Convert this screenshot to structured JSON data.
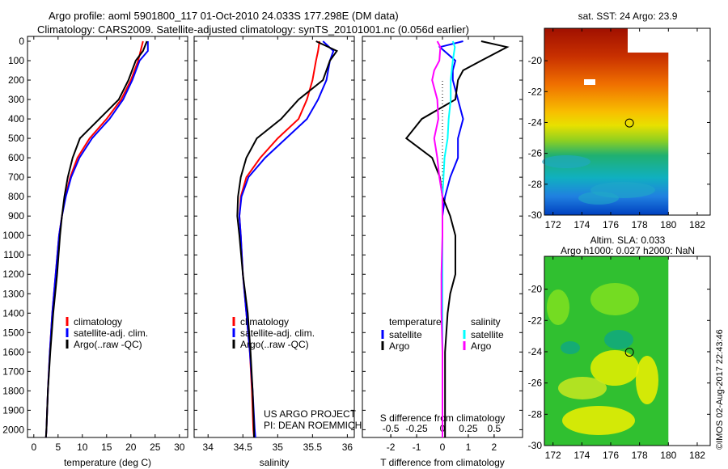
{
  "title": {
    "line1": "Argo profile: aoml 5901800_117 01-Oct-2010 24.033S 177.298E (DM data)",
    "line2": "Climatology: CARS2009. Satellite-adjusted climatology: synTS_20101001.nc (0.056d earlier)"
  },
  "copyright": "©IMOS 02-Aug-2017 22:43:46",
  "colors": {
    "clim": "#ff0000",
    "sat": "#0000ff",
    "argo": "#000000",
    "sal_sat": "#00ffff",
    "sal_argo": "#ff00ff"
  },
  "chart_data": [
    {
      "type": "line",
      "id": "temp",
      "xlabel": "temperature (deg C)",
      "ylabel": "",
      "xlim": [
        -1.3,
        31.7
      ],
      "ylim": [
        2040,
        -25
      ],
      "xticks": [
        "0",
        "5",
        "10",
        "15",
        "20",
        "25",
        "30"
      ],
      "xtickvals": [
        0,
        5,
        10,
        15,
        20,
        25,
        30
      ],
      "depths": [
        0,
        50,
        100,
        200,
        300,
        400,
        500,
        600,
        700,
        800,
        900,
        1000,
        1200,
        1400,
        1600,
        1800,
        2000,
        2040
      ],
      "legend": [
        "climatology",
        "satellite-adj. clim.",
        "Argo(..raw -QC)"
      ],
      "series": [
        {
          "name": "climatology",
          "color": "#ff0000",
          "values": [
            22.5,
            22,
            21.5,
            20,
            18,
            15,
            11.5,
            9,
            7.5,
            6.5,
            5.8,
            5.2,
            4.5,
            3.8,
            3.3,
            2.9,
            2.6,
            2.5
          ]
        },
        {
          "name": "satellite-adj. clim.",
          "color": "#0000ff",
          "values": [
            23.5,
            23.5,
            21.8,
            20.3,
            18.4,
            15.6,
            12,
            9.4,
            7.7,
            6.6,
            5.8,
            5.2,
            4.5,
            3.8,
            3.3,
            2.9,
            2.6,
            2.5
          ]
        },
        {
          "name": "Argo(..raw -QC)",
          "color": "#000000",
          "values": [
            23.3,
            22.5,
            21,
            19.5,
            17.5,
            13.5,
            9.5,
            8,
            7,
            6.3,
            5.8,
            5.4,
            4.8,
            4,
            3.4,
            2.9,
            2.6,
            2.5
          ]
        }
      ]
    },
    {
      "type": "line",
      "id": "sal",
      "xlabel": "salinity",
      "xlim": [
        33.8,
        36.1
      ],
      "ylim": [
        2040,
        -25
      ],
      "xticks": [
        "34",
        "34.5",
        "35",
        "35.5",
        "36"
      ],
      "xtickvals": [
        34,
        34.5,
        35,
        35.5,
        36
      ],
      "depths": [
        0,
        50,
        100,
        200,
        300,
        400,
        500,
        600,
        700,
        800,
        900,
        1000,
        1200,
        1400,
        1600,
        1800,
        2000,
        2040
      ],
      "legend": [
        "climatology",
        "satellite-adj. clim.",
        "Argo(..raw -QC)"
      ],
      "annotation": [
        "US ARGO PROJECT",
        "PI: DEAN ROEMMICH"
      ],
      "series": [
        {
          "name": "climatology",
          "color": "#ff0000",
          "values": [
            35.6,
            35.58,
            35.55,
            35.5,
            35.42,
            35.3,
            35.0,
            34.75,
            34.55,
            34.47,
            34.45,
            34.47,
            34.5,
            34.55,
            34.6,
            34.63,
            34.65,
            34.66
          ]
        },
        {
          "name": "satellite-adj. clim.",
          "color": "#0000ff",
          "values": [
            35.65,
            35.8,
            35.75,
            35.7,
            35.58,
            35.42,
            35.12,
            34.82,
            34.58,
            34.48,
            34.45,
            34.47,
            34.5,
            34.55,
            34.6,
            34.64,
            34.67,
            34.68
          ]
        },
        {
          "name": "Argo(..raw -QC)",
          "color": "#000000",
          "values": [
            35.55,
            35.85,
            35.75,
            35.65,
            35.3,
            35.05,
            34.7,
            34.55,
            34.47,
            34.43,
            34.42,
            34.45,
            34.5,
            34.57,
            34.61,
            34.64,
            34.66,
            34.66
          ]
        }
      ]
    },
    {
      "type": "line",
      "id": "diff",
      "xlabel": "T difference from climatology",
      "x2label": "S difference from climatology",
      "xlim": [
        -3.1,
        3.1
      ],
      "ylim": [
        2040,
        -25
      ],
      "xticks": [
        "-2",
        "-1",
        "0",
        "1",
        "2"
      ],
      "xtickvals": [
        -2,
        -1,
        0,
        1,
        2
      ],
      "x2ticks": [
        "-0.5",
        "-0.25",
        "0",
        "0.25",
        "0.5"
      ],
      "x2tickvals": [
        -0.5,
        -0.25,
        0,
        0.25,
        0.5
      ],
      "depths": [
        0,
        30,
        100,
        150,
        200,
        300,
        400,
        500,
        600,
        700,
        800,
        900,
        1000,
        1200,
        1300,
        1400,
        1600,
        2040
      ],
      "legend": {
        "temperature": "temperature",
        "salinity": "salinity",
        "items": [
          "satellite",
          "Argo",
          "satellite",
          "Argo"
        ]
      },
      "series": [
        {
          "name": "temperature satellite",
          "color": "#0000ff",
          "unit": "T",
          "values": [
            0.8,
            -0.1,
            0.5,
            0.4,
            0.4,
            0.6,
            0.8,
            0.6,
            0.6,
            0.3,
            0.1,
            0,
            0,
            0,
            0,
            0,
            0,
            0
          ]
        },
        {
          "name": "temperature Argo",
          "color": "#000000",
          "unit": "T",
          "values": [
            1.5,
            2.5,
            1.5,
            0.8,
            0.6,
            0.5,
            -0.8,
            -1.4,
            -0.4,
            -0.1,
            0,
            0.3,
            0.5,
            0.5,
            0.3,
            0.2,
            0.1,
            0.1
          ]
        },
        {
          "name": "salinity satellite",
          "color": "#00ffff",
          "unit": "S",
          "values": [
            0.1,
            0.12,
            0.1,
            0.09,
            0.08,
            0.08,
            0.06,
            0.05,
            0.02,
            0.01,
            0,
            0,
            0,
            0,
            0,
            0,
            0,
            0
          ]
        },
        {
          "name": "salinity Argo",
          "color": "#ff00ff",
          "unit": "S",
          "values": [
            -0.05,
            -0.02,
            -0.03,
            -0.08,
            -0.1,
            -0.05,
            -0.04,
            -0.08,
            -0.05,
            -0.03,
            0,
            0,
            0,
            -0.01,
            -0.01,
            -0.01,
            0,
            0
          ]
        }
      ]
    },
    {
      "type": "heatmap",
      "id": "sst",
      "title": "sat. SST: 24 Argo: 23.9",
      "xlim": [
        171.4,
        182.9
      ],
      "ylim": [
        -30,
        -17.9
      ],
      "xticks": [
        "172",
        "174",
        "176",
        "178",
        "180",
        "182"
      ],
      "xtickvals": [
        172,
        174,
        176,
        178,
        180,
        182
      ],
      "yticks": [
        "-20",
        "-22",
        "-24",
        "-26",
        "-28",
        "-30"
      ],
      "ytickvals": [
        -20,
        -22,
        -24,
        -26,
        -28,
        -30
      ],
      "argo_position": [
        177.298,
        -24.033
      ]
    },
    {
      "type": "heatmap",
      "id": "sla",
      "title": "Altim. SLA: 0.033",
      "subtitle": "Argo h1000: 0.027 h2000: NaN",
      "xlim": [
        171.4,
        182.9
      ],
      "ylim": [
        -30,
        -17.9
      ],
      "xticks": [
        "172",
        "174",
        "176",
        "178",
        "180",
        "182"
      ],
      "xtickvals": [
        172,
        174,
        176,
        178,
        180,
        182
      ],
      "yticks": [
        "-20",
        "-22",
        "-24",
        "-26",
        "-28",
        "-30"
      ],
      "ytickvals": [
        -20,
        -22,
        -24,
        -26,
        -28,
        -30
      ],
      "argo_position": [
        177.298,
        -24.033
      ]
    }
  ],
  "depth_ticks": [
    "0",
    "100",
    "200",
    "300",
    "400",
    "500",
    "600",
    "700",
    "800",
    "900",
    "1000",
    "1100",
    "1200",
    "1300",
    "1400",
    "1500",
    "1600",
    "1700",
    "1800",
    "1900",
    "2000"
  ]
}
